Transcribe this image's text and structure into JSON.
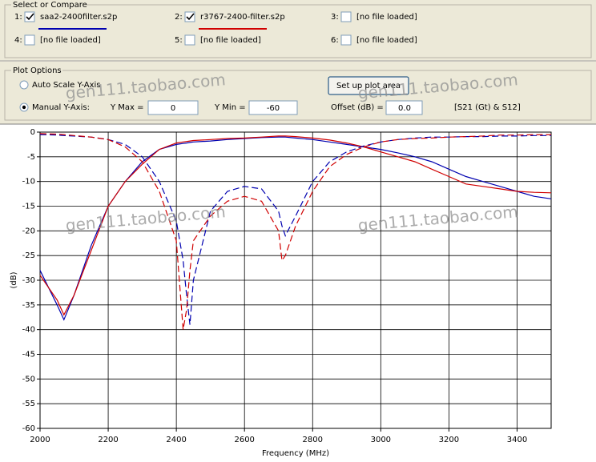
{
  "ui": {
    "select_compare": {
      "title": "Select or Compare",
      "files": [
        {
          "index": "1:",
          "checked": true,
          "label": "saa2-2400filter.s2p",
          "color": "#0000b0"
        },
        {
          "index": "2:",
          "checked": true,
          "label": "r3767-2400-filter.s2p",
          "color": "#d00000"
        },
        {
          "index": "3:",
          "checked": false,
          "label": "[no file loaded]"
        },
        {
          "index": "4:",
          "checked": false,
          "label": "[no file loaded]"
        },
        {
          "index": "5:",
          "checked": false,
          "label": "[no file loaded]"
        },
        {
          "index": "6:",
          "checked": false,
          "label": "[no file loaded]"
        }
      ]
    },
    "plot_options": {
      "title": "Plot Options",
      "radios": [
        {
          "label": "Auto Scale Y-Axis",
          "selected": false
        },
        {
          "label": "Manual Y-Axis:",
          "selected": true
        }
      ],
      "y_max_label": "Y Max =",
      "y_max_value": "0",
      "y_min_label": "Y Min =",
      "y_min_value": "-60",
      "button": "Set up plot area",
      "offset_label": "Offset (dB) =",
      "offset_value": "0.0",
      "mode": "[S21 (Gt) & S12]"
    },
    "watermarks": [
      "gen111.taobao.com",
      "gen111.taobao.com",
      "gen111.taobao.com",
      "gen111.taobao.com"
    ]
  },
  "chart_data": {
    "type": "line",
    "x_label": "Frequency (MHz)",
    "y_label": "(dB)",
    "x": [
      2000,
      2050,
      2070,
      2100,
      2150,
      2200,
      2250,
      2300,
      2350,
      2400,
      2420,
      2430,
      2440,
      2450,
      2500,
      2550,
      2600,
      2650,
      2700,
      2710,
      2720,
      2750,
      2800,
      2850,
      2900,
      2950,
      3000,
      3050,
      3100,
      3150,
      3200,
      3250,
      3300,
      3350,
      3400,
      3450,
      3500
    ],
    "series": [
      {
        "color": "#0000b0",
        "dashed": false,
        "values": [
          -28,
          -35,
          -38,
          -33,
          -23,
          -15,
          -10,
          -6,
          -3.5,
          -2.5,
          -2.3,
          -2.2,
          -2.1,
          -2,
          -1.8,
          -1.5,
          -1.3,
          -1.1,
          -1,
          -1,
          -1,
          -1.2,
          -1.5,
          -2,
          -2.5,
          -3,
          -3.5,
          -4.2,
          -5,
          -6,
          -7.5,
          -9,
          -10,
          -11,
          -12,
          -13,
          -13.5
        ]
      },
      {
        "color": "#d00000",
        "dashed": false,
        "values": [
          -29,
          -34,
          -37,
          -33,
          -24,
          -15,
          -10,
          -6.5,
          -3.5,
          -2.2,
          -2,
          -1.9,
          -1.8,
          -1.7,
          -1.5,
          -1.3,
          -1.2,
          -1,
          -0.8,
          -0.8,
          -0.8,
          -0.9,
          -1.2,
          -1.6,
          -2.2,
          -3,
          -4,
          -5,
          -6,
          -7.5,
          -9,
          -10.5,
          -11,
          -11.5,
          -12,
          -12.2,
          -12.3
        ]
      },
      {
        "color": "#0000b0",
        "dashed": true,
        "values": [
          -0.5,
          -0.6,
          -0.7,
          -0.8,
          -1,
          -1.5,
          -2.5,
          -5,
          -10,
          -18,
          -26,
          -33,
          -39,
          -30,
          -16,
          -12,
          -11,
          -11.5,
          -16,
          -19,
          -21,
          -17,
          -10,
          -6,
          -4,
          -2.8,
          -2,
          -1.5,
          -1.2,
          -1,
          -1,
          -0.9,
          -0.9,
          -0.8,
          -0.8,
          -0.7,
          -0.7
        ]
      },
      {
        "color": "#d00000",
        "dashed": true,
        "values": [
          -0.3,
          -0.4,
          -0.5,
          -0.7,
          -1,
          -1.5,
          -3,
          -6,
          -12,
          -22,
          -40,
          -36,
          -28,
          -22,
          -17,
          -14,
          -13,
          -14,
          -20,
          -26,
          -25,
          -19,
          -12,
          -7,
          -4.5,
          -3,
          -2,
          -1.5,
          -1.3,
          -1.2,
          -1,
          -0.9,
          -0.8,
          -0.6,
          -0.6,
          -0.5,
          -0.5
        ]
      }
    ],
    "xlim": [
      2000,
      3500
    ],
    "ylim": [
      -60,
      0
    ],
    "xticks": [
      2000,
      2200,
      2400,
      2600,
      2800,
      3000,
      3200,
      3400
    ],
    "yticks": [
      0,
      -5,
      -10,
      -15,
      -20,
      -25,
      -30,
      -35,
      -40,
      -45,
      -50,
      -55,
      -60
    ],
    "grid": true
  }
}
